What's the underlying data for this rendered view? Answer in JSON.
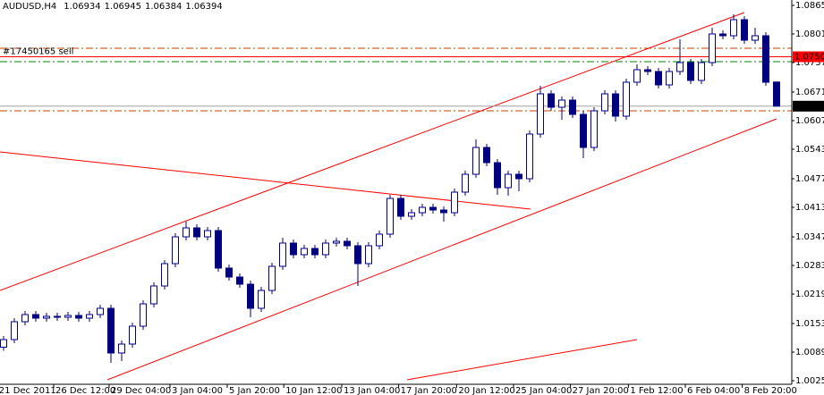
{
  "chart_data": {
    "type": "candlestick",
    "symbol": "AUDUSD,H4",
    "order_label": "#17450165 sell",
    "bull_color": "#ffffff",
    "bear_color": "#000080",
    "outline_color": "#000080",
    "open": [
      1.01,
      1.0117,
      1.0157,
      1.0173,
      1.0165,
      1.0169,
      1.0167,
      1.0171,
      1.0165,
      1.0173,
      1.0187,
      1.0087,
      1.0107,
      1.0147,
      1.0197,
      1.0237,
      1.0287,
      1.0347,
      1.0367,
      1.0347,
      1.0361,
      1.0277,
      1.0257,
      1.0241,
      1.0187,
      1.0227,
      1.0281,
      1.0333,
      1.0307,
      1.0321,
      1.0307,
      1.0333,
      1.0337,
      1.0327,
      1.0287,
      1.0327,
      1.0353,
      1.0433,
      1.0393,
      1.0401,
      1.0413,
      1.0407,
      1.0401,
      1.0447,
      1.0487,
      1.0547,
      1.0513,
      1.0457,
      1.0487,
      1.0477,
      1.0577,
      1.0667,
      1.0637,
      1.0653,
      1.0621,
      1.0547,
      1.0629,
      1.0667,
      1.0617,
      1.0693,
      1.0721,
      1.0717,
      1.0687,
      1.0717,
      1.0737,
      1.0697,
      1.0737,
      1.0801,
      1.0797,
      1.0833,
      1.0787,
      1.0797,
      1.06934
    ],
    "high": [
      1.0125,
      1.0165,
      1.0181,
      1.0181,
      1.0177,
      1.0177,
      1.0179,
      1.0179,
      1.0181,
      1.0195,
      1.0195,
      1.0115,
      1.0155,
      1.0205,
      1.0245,
      1.0295,
      1.0355,
      1.0381,
      1.0375,
      1.0369,
      1.0369,
      1.0285,
      1.0265,
      1.0249,
      1.0235,
      1.0289,
      1.0345,
      1.0341,
      1.0329,
      1.0329,
      1.0341,
      1.0345,
      1.0345,
      1.0335,
      1.0335,
      1.0361,
      1.0441,
      1.0441,
      1.0409,
      1.0421,
      1.0421,
      1.0415,
      1.0455,
      1.0495,
      1.0565,
      1.0555,
      1.0521,
      1.0495,
      1.0495,
      1.0585,
      1.0685,
      1.0675,
      1.0661,
      1.0661,
      1.0629,
      1.0637,
      1.0675,
      1.0675,
      1.0701,
      1.0733,
      1.0729,
      1.0725,
      1.0725,
      1.0789,
      1.0745,
      1.0745,
      1.0815,
      1.0809,
      1.0845,
      1.0841,
      1.0815,
      1.0805,
      1.06945
    ],
    "low": [
      1.0092,
      1.0109,
      1.0149,
      1.0157,
      1.0157,
      1.0159,
      1.0159,
      1.0157,
      1.0157,
      1.0165,
      1.0065,
      1.0069,
      1.0099,
      1.0139,
      1.0189,
      1.0229,
      1.0279,
      1.0339,
      1.0339,
      1.0339,
      1.0269,
      1.0249,
      1.0233,
      1.0167,
      1.0179,
      1.0219,
      1.0273,
      1.0299,
      1.0299,
      1.0299,
      1.0299,
      1.0325,
      1.0319,
      1.0237,
      1.0279,
      1.0319,
      1.0345,
      1.0385,
      1.0385,
      1.0393,
      1.0399,
      1.0381,
      1.0393,
      1.0439,
      1.0479,
      1.0505,
      1.0441,
      1.0439,
      1.0449,
      1.0469,
      1.0569,
      1.0629,
      1.0609,
      1.0613,
      1.0523,
      1.0539,
      1.0621,
      1.0605,
      1.0609,
      1.0685,
      1.0709,
      1.0679,
      1.0679,
      1.0709,
      1.0689,
      1.0689,
      1.0729,
      1.0789,
      1.0789,
      1.0779,
      1.0779,
      1.0685,
      1.06384
    ],
    "close": [
      1.0117,
      1.0157,
      1.0173,
      1.0165,
      1.0169,
      1.0167,
      1.0171,
      1.0165,
      1.0173,
      1.0187,
      1.0087,
      1.0107,
      1.0147,
      1.0197,
      1.0237,
      1.0287,
      1.0347,
      1.0367,
      1.0347,
      1.0361,
      1.0277,
      1.0257,
      1.0241,
      1.0187,
      1.0227,
      1.0281,
      1.0333,
      1.0307,
      1.0321,
      1.0307,
      1.0333,
      1.0337,
      1.0327,
      1.0287,
      1.0327,
      1.0353,
      1.0433,
      1.0393,
      1.0401,
      1.0413,
      1.0407,
      1.0401,
      1.0447,
      1.0487,
      1.0547,
      1.0513,
      1.0457,
      1.0487,
      1.0477,
      1.0577,
      1.0667,
      1.0637,
      1.0653,
      1.0621,
      1.0547,
      1.0629,
      1.0667,
      1.0617,
      1.0693,
      1.0721,
      1.0717,
      1.0687,
      1.0717,
      1.0737,
      1.0697,
      1.0737,
      1.0801,
      1.0797,
      1.0833,
      1.0787,
      1.0797,
      1.0693,
      1.06394
    ],
    "xlim": [
      -0.333,
      73.417
    ],
    "ylim": [
      1.0017,
      1.0877
    ],
    "yticks": [
      {
        "value": 1.0865,
        "label": "1.08650"
      },
      {
        "value": 1.0801,
        "label": "1.08010"
      },
      {
        "value": 1.0737,
        "label": "1.07370"
      },
      {
        "value": 1.0671,
        "label": "1.06710"
      },
      {
        "value": 1.0607,
        "label": "1.06070"
      },
      {
        "value": 1.0543,
        "label": "1.05430"
      },
      {
        "value": 1.0477,
        "label": "1.04770"
      },
      {
        "value": 1.0413,
        "label": "1.04130"
      },
      {
        "value": 1.0347,
        "label": "1.03470"
      },
      {
        "value": 1.0283,
        "label": "1.02830"
      },
      {
        "value": 1.0219,
        "label": "1.02190"
      },
      {
        "value": 1.0153,
        "label": "1.01530"
      },
      {
        "value": 1.0089,
        "label": "1.00890"
      },
      {
        "value": 1.0025,
        "label": "1.00250"
      }
    ],
    "xticks": [
      {
        "value": -0.6,
        "label": "21 Dec 2011"
      },
      {
        "value": 4.67,
        "label": "26 Dec 12:00"
      },
      {
        "value": 9.83,
        "label": "29 Dec 04:00"
      },
      {
        "value": 15.5,
        "label": "3 Jan 04:00"
      },
      {
        "value": 20.83,
        "label": "5 Jan 20:00"
      },
      {
        "value": 26.1,
        "label": "10 Jan 12:00"
      },
      {
        "value": 31.5,
        "label": "13 Jan 04:00"
      },
      {
        "value": 36.8,
        "label": "17 Jan 20:00"
      },
      {
        "value": 42.2,
        "label": "20 Jan 12:00"
      },
      {
        "value": 47.5,
        "label": "25 Jan 04:00"
      },
      {
        "value": 52.8,
        "label": "27 Jan 20:00"
      },
      {
        "value": 58.2,
        "label": "1 Feb 12:00"
      },
      {
        "value": 63.5,
        "label": "6 Feb 04:00"
      },
      {
        "value": 68.8,
        "label": "8 Feb 20:00"
      }
    ],
    "levels": [
      {
        "value": 1.0769,
        "color": "#c04000",
        "style": "dashdot"
      },
      {
        "value": 1.0739,
        "color": "#008000",
        "style": "dashdot"
      },
      {
        "value": 1.0629,
        "color": "#c04000",
        "style": "dashdot"
      },
      {
        "value": 1.075,
        "label": "1.07500",
        "color": "#ff0000",
        "style": "solid"
      }
    ],
    "trendlines": [
      {
        "x": [
          -0.333,
          69
        ],
        "y": [
          1.0227,
          1.0849
        ],
        "color": "#ff0000"
      },
      {
        "x": [
          9.67,
          72
        ],
        "y": [
          1.0027,
          1.0611
        ],
        "color": "#ff0000"
      },
      {
        "x": [
          -0.333,
          49.08
        ],
        "y": [
          1.0537,
          1.0409
        ],
        "color": "#ff0000"
      },
      {
        "x": [
          37.58,
          59
        ],
        "y": [
          1.0027,
          1.0117
        ],
        "color": "#ff0000"
      }
    ]
  }
}
